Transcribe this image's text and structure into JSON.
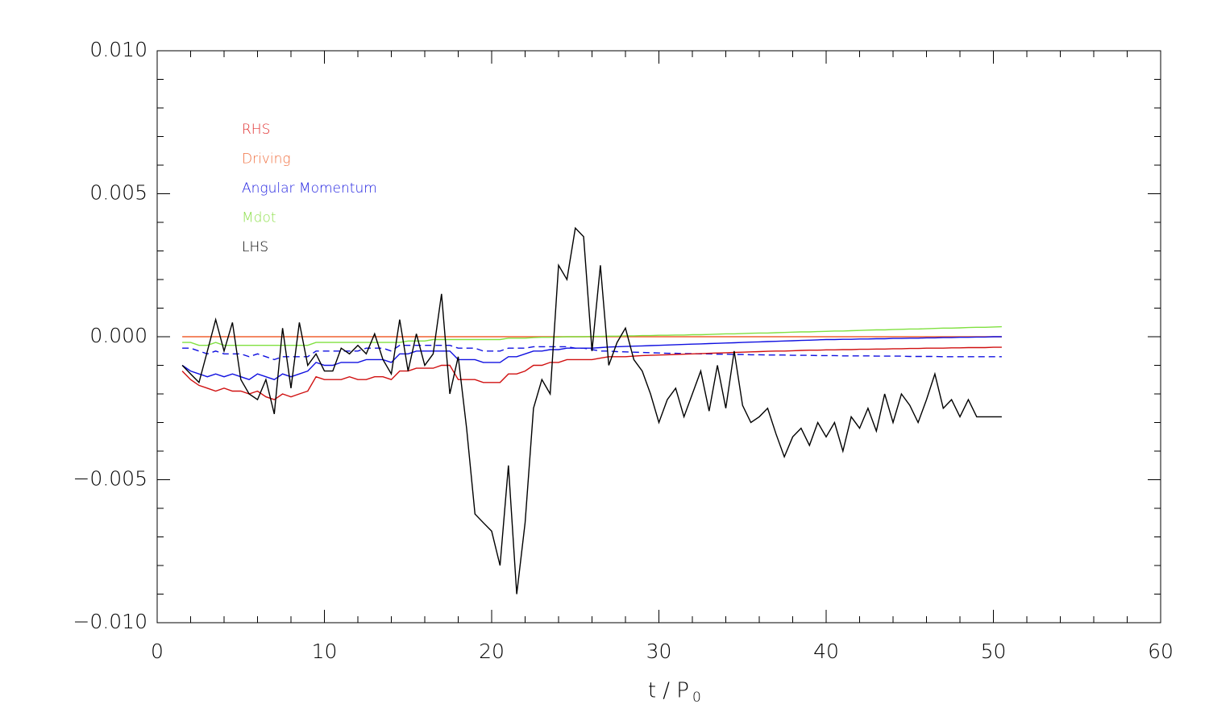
{
  "chart_data": {
    "type": "line",
    "xlabel": "t / P",
    "xlabel_sub": "0",
    "xlim": [
      0,
      60
    ],
    "xticks": [
      0,
      10,
      20,
      30,
      40,
      50,
      60
    ],
    "xminorticks": [
      0,
      2,
      4,
      6,
      8,
      10,
      12,
      14,
      16,
      18,
      20,
      22,
      24,
      26,
      28,
      30,
      32,
      34,
      36,
      38,
      40,
      42,
      44,
      46,
      48,
      50,
      52,
      54,
      56,
      58,
      60
    ],
    "ylim": [
      -0.01,
      0.01
    ],
    "yticks": [
      {
        "value": -0.01,
        "label": "−0.010"
      },
      {
        "value": -0.005,
        "label": "−0.005"
      },
      {
        "value": 0,
        "label": "0.000"
      },
      {
        "value": 0.005,
        "label": "0.005"
      },
      {
        "value": 0.01,
        "label": "0.010"
      }
    ],
    "yminorticks": [
      -0.01,
      -0.009,
      -0.008,
      -0.007,
      -0.006,
      -0.005,
      -0.004,
      -0.003,
      -0.002,
      -0.001,
      0,
      0.001,
      0.002,
      0.003,
      0.004,
      0.005,
      0.006,
      0.007,
      0.008,
      0.009,
      0.01
    ],
    "x": [
      1.5,
      2,
      2.5,
      3,
      3.5,
      4,
      4.5,
      5,
      5.5,
      6,
      6.5,
      7,
      7.5,
      8,
      8.5,
      9,
      9.5,
      10,
      10.5,
      11,
      11.5,
      12,
      12.5,
      13,
      13.5,
      14,
      14.5,
      15,
      15.5,
      16,
      16.5,
      17,
      17.5,
      18,
      18.5,
      19,
      19.5,
      20,
      20.5,
      21,
      21.5,
      22,
      22.5,
      23,
      23.5,
      24,
      24.5,
      25,
      25.5,
      26,
      26.5,
      27,
      27.5,
      28,
      28.5,
      29,
      29.5,
      30,
      30.5,
      31,
      31.5,
      32,
      32.5,
      33,
      33.5,
      34,
      34.5,
      35,
      35.5,
      36,
      36.5,
      37,
      37.5,
      38,
      38.5,
      39,
      39.5,
      40,
      40.5,
      41,
      41.5,
      42,
      42.5,
      43,
      43.5,
      44,
      44.5,
      45,
      45.5,
      46,
      46.5,
      47,
      47.5,
      48,
      48.5,
      49,
      49.5,
      50,
      50.5
    ],
    "series": [
      {
        "name": "RHS",
        "color": "#d01010",
        "legend_color": "#e03030",
        "values": [
          -0.0012,
          -0.0015,
          -0.0017,
          -0.0018,
          -0.0019,
          -0.0018,
          -0.0019,
          -0.0019,
          -0.002,
          -0.0019,
          -0.0021,
          -0.0022,
          -0.002,
          -0.0021,
          -0.002,
          -0.0019,
          -0.0014,
          -0.0015,
          -0.0015,
          -0.0015,
          -0.0014,
          -0.0015,
          -0.0015,
          -0.0014,
          -0.0014,
          -0.0015,
          -0.0012,
          -0.0012,
          -0.0011,
          -0.0011,
          -0.0011,
          -0.001,
          -0.001,
          -0.0015,
          -0.0015,
          -0.0015,
          -0.0016,
          -0.0016,
          -0.0016,
          -0.0013,
          -0.0013,
          -0.0012,
          -0.001,
          -0.001,
          -0.0009,
          -0.0009,
          -0.0008,
          -0.0008,
          -0.0008,
          -0.0008,
          -0.00075,
          -0.0007,
          -0.0007,
          -0.0007,
          -0.00068,
          -0.00066,
          -0.00065,
          -0.00064,
          -0.00063,
          -0.00062,
          -0.00061,
          -0.0006,
          -0.00059,
          -0.00058,
          -0.00057,
          -0.00056,
          -0.00055,
          -0.00054,
          -0.00053,
          -0.00052,
          -0.00051,
          -0.0005,
          -0.0005,
          -0.00049,
          -0.00048,
          -0.00047,
          -0.00047,
          -0.00046,
          -0.00046,
          -0.00045,
          -0.00045,
          -0.00044,
          -0.00044,
          -0.00043,
          -0.00043,
          -0.00042,
          -0.00042,
          -0.00041,
          -0.00041,
          -0.0004,
          -0.0004,
          -0.0004,
          -0.00039,
          -0.00039,
          -0.00038,
          -0.00038,
          -0.00038,
          -0.00037,
          -0.00037
        ]
      },
      {
        "name": "Driving",
        "color": "#f06030",
        "legend_color": "#f07040",
        "values": [
          0,
          0,
          0,
          0,
          0,
          0,
          0,
          0,
          0,
          0,
          0,
          0,
          0,
          0,
          0,
          0,
          0,
          0,
          0,
          0,
          0,
          0,
          0,
          0,
          0,
          0,
          0,
          0,
          0,
          0,
          0,
          0,
          0,
          0,
          0,
          0,
          0,
          0,
          0,
          0,
          0,
          0,
          0,
          0,
          0,
          0,
          0,
          0,
          0,
          0,
          0,
          0,
          0,
          0,
          0,
          0,
          0,
          0,
          0,
          0,
          0,
          0,
          0,
          0,
          0,
          0,
          0,
          0,
          0,
          0,
          0,
          0,
          0,
          0,
          0,
          0,
          0,
          0,
          0,
          0,
          0,
          0,
          0,
          0,
          0,
          0,
          0,
          0,
          0,
          0,
          0,
          0,
          0,
          0,
          0,
          0,
          0,
          0,
          0
        ]
      },
      {
        "name": "Angular Momentum",
        "color": "#1010e0",
        "legend_color": "#2020e0",
        "values": [
          -0.001,
          -0.0012,
          -0.0013,
          -0.0014,
          -0.0013,
          -0.0014,
          -0.0013,
          -0.0014,
          -0.0015,
          -0.0013,
          -0.0014,
          -0.0015,
          -0.0013,
          -0.0014,
          -0.0013,
          -0.0012,
          -0.0009,
          -0.001,
          -0.001,
          -0.0009,
          -0.0009,
          -0.0009,
          -0.0008,
          -0.0008,
          -0.0008,
          -0.0009,
          -0.0006,
          -0.0006,
          -0.0005,
          -0.0005,
          -0.0005,
          -0.0005,
          -0.0005,
          -0.0008,
          -0.0008,
          -0.0008,
          -0.0009,
          -0.0009,
          -0.0009,
          -0.0007,
          -0.0007,
          -0.0006,
          -0.0005,
          -0.0005,
          -0.00045,
          -0.00045,
          -0.0004,
          -0.0004,
          -0.0004,
          -0.0004,
          -0.00038,
          -0.00036,
          -0.00035,
          -0.00034,
          -0.00033,
          -0.00032,
          -0.00031,
          -0.0003,
          -0.00029,
          -0.00028,
          -0.00027,
          -0.00026,
          -0.00025,
          -0.00024,
          -0.00023,
          -0.00022,
          -0.00021,
          -0.0002,
          -0.00019,
          -0.00018,
          -0.00017,
          -0.00016,
          -0.00015,
          -0.00014,
          -0.00013,
          -0.00012,
          -0.00011,
          -0.0001,
          -0.0001,
          -9e-05,
          -9e-05,
          -8e-05,
          -8e-05,
          -7e-05,
          -7e-05,
          -6e-05,
          -6e-05,
          -5e-05,
          -5e-05,
          -4e-05,
          -4e-05,
          -3e-05,
          -3e-05,
          -2e-05,
          -2e-05,
          -1e-05,
          -1e-05,
          0,
          0
        ],
        "dashed": [
          -0.0004,
          -0.0004,
          -0.0005,
          -0.0006,
          -0.0005,
          -0.0006,
          -0.0006,
          -0.0006,
          -0.0007,
          -0.0006,
          -0.0007,
          -0.0008,
          -0.0007,
          -0.0007,
          -0.0007,
          -0.0007,
          -0.0005,
          -0.0005,
          -0.0005,
          -0.0005,
          -0.0005,
          -0.0005,
          -0.0004,
          -0.0004,
          -0.0004,
          -0.0005,
          -0.0003,
          -0.0003,
          -0.0003,
          -0.0003,
          -0.0003,
          -0.0003,
          -0.0003,
          -0.0004,
          -0.0004,
          -0.0004,
          -0.0005,
          -0.0005,
          -0.0005,
          -0.0004,
          -0.0004,
          -0.0004,
          -0.00035,
          -0.00035,
          -0.00035,
          -0.00035,
          -0.00035,
          -0.0004,
          -0.0004,
          -0.00045,
          -0.0005,
          -0.0005,
          -0.00052,
          -0.00053,
          -0.00054,
          -0.00055,
          -0.00056,
          -0.00057,
          -0.00058,
          -0.00058,
          -0.00059,
          -0.00059,
          -0.0006,
          -0.0006,
          -0.00061,
          -0.00061,
          -0.00062,
          -0.00062,
          -0.00063,
          -0.00063,
          -0.00064,
          -0.00064,
          -0.00064,
          -0.00065,
          -0.00065,
          -0.00065,
          -0.00066,
          -0.00066,
          -0.00066,
          -0.00067,
          -0.00067,
          -0.00067,
          -0.00067,
          -0.00068,
          -0.00068,
          -0.00068,
          -0.00068,
          -0.00069,
          -0.00069,
          -0.00069,
          -0.00069,
          -0.0007,
          -0.0007,
          -0.0007,
          -0.0007,
          -0.0007,
          -0.0007,
          -0.0007,
          -0.0007
        ]
      },
      {
        "name": "Mdot",
        "color": "#80e040",
        "legend_color": "#90e050",
        "values": [
          -0.0002,
          -0.0002,
          -0.0003,
          -0.0003,
          -0.0002,
          -0.0003,
          -0.0003,
          -0.0003,
          -0.0003,
          -0.0003,
          -0.0003,
          -0.0003,
          -0.0003,
          -0.0003,
          -0.0003,
          -0.0003,
          -0.0002,
          -0.0002,
          -0.0002,
          -0.0002,
          -0.0002,
          -0.0002,
          -0.0002,
          -0.0002,
          -0.0002,
          -0.0002,
          -0.0002,
          -0.00015,
          -0.00015,
          -0.00015,
          -0.0001,
          -0.0001,
          -0.0001,
          -0.0001,
          -0.0001,
          -0.0001,
          -0.0001,
          -0.0001,
          -0.0001,
          -5e-05,
          -5e-05,
          -5e-05,
          -3e-05,
          -2e-05,
          -2e-05,
          -1e-05,
          0,
          0,
          0,
          1e-05,
          1e-05,
          2e-05,
          2e-05,
          3e-05,
          3e-05,
          4e-05,
          4e-05,
          5e-05,
          5e-05,
          6e-05,
          6e-05,
          7e-05,
          7e-05,
          8e-05,
          9e-05,
          0.0001,
          0.0001,
          0.00011,
          0.00012,
          0.00013,
          0.00013,
          0.00014,
          0.00015,
          0.00016,
          0.00017,
          0.00017,
          0.00018,
          0.00019,
          0.0002,
          0.0002,
          0.00021,
          0.00022,
          0.00023,
          0.00024,
          0.00024,
          0.00025,
          0.00026,
          0.00027,
          0.00027,
          0.00028,
          0.00029,
          0.0003,
          0.0003,
          0.00031,
          0.00032,
          0.00033,
          0.00033,
          0.00034,
          0.00035
        ]
      },
      {
        "name": "LHS",
        "color": "#000000",
        "legend_color": "#000000",
        "values": [
          -0.001,
          -0.0013,
          -0.0016,
          -0.0005,
          0.0006,
          -0.0005,
          0.0005,
          -0.0015,
          -0.002,
          -0.0022,
          -0.0015,
          -0.0027,
          0.0003,
          -0.0018,
          0.0005,
          -0.001,
          -0.0006,
          -0.0012,
          -0.0012,
          -0.0004,
          -0.0006,
          -0.0003,
          -0.0006,
          0.0001,
          -0.0008,
          -0.0013,
          0.0006,
          -0.0012,
          0.0001,
          -0.001,
          -0.0006,
          0.0015,
          -0.002,
          -0.0007,
          -0.0032,
          -0.0062,
          -0.0065,
          -0.0068,
          -0.008,
          -0.0045,
          -0.009,
          -0.0065,
          -0.0025,
          -0.0015,
          -0.002,
          0.0025,
          0.002,
          0.0038,
          0.0035,
          -0.0005,
          0.0025,
          -0.001,
          -0.0002,
          0.0003,
          -0.0008,
          -0.0012,
          -0.002,
          -0.003,
          -0.0022,
          -0.0018,
          -0.0028,
          -0.002,
          -0.0012,
          -0.0026,
          -0.001,
          -0.0025,
          -0.0005,
          -0.0024,
          -0.003,
          -0.0028,
          -0.0025,
          -0.0034,
          -0.0042,
          -0.0035,
          -0.0032,
          -0.0038,
          -0.003,
          -0.0035,
          -0.003,
          -0.004,
          -0.0028,
          -0.0032,
          -0.0025,
          -0.0033,
          -0.002,
          -0.003,
          -0.002,
          -0.0024,
          -0.003,
          -0.0022,
          -0.0013,
          -0.0025,
          -0.0022,
          -0.0028,
          -0.0022,
          -0.0028,
          -0.0028,
          -0.0028,
          -0.0028
        ]
      }
    ]
  }
}
